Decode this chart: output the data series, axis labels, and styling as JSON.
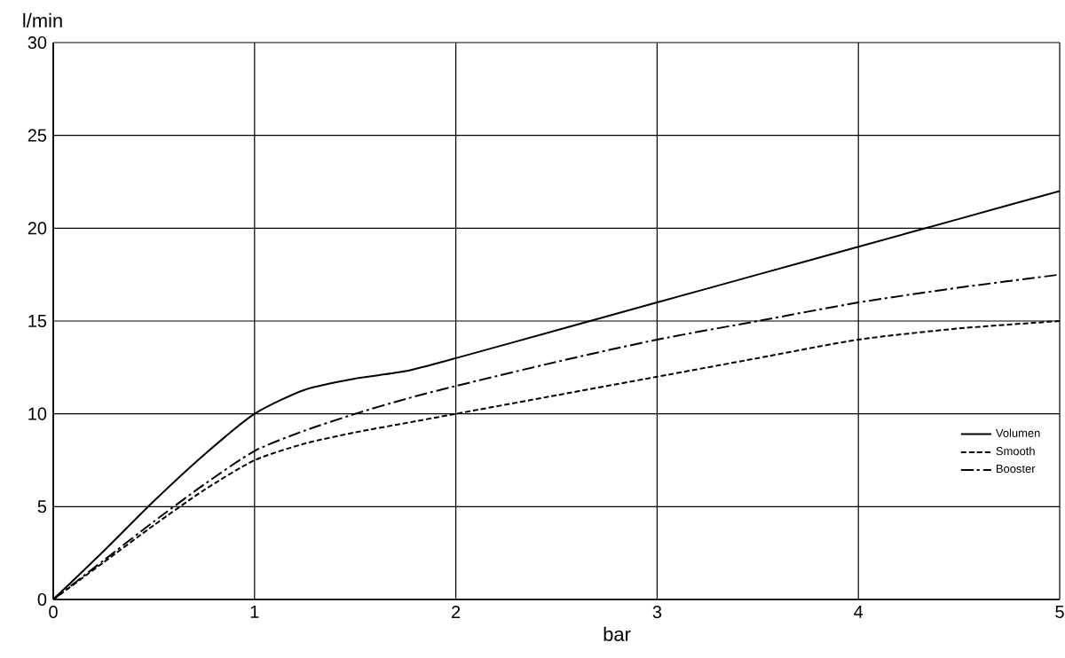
{
  "chart_data": {
    "type": "line",
    "xlabel": "bar",
    "ylabel": "l/min",
    "xlim": [
      0,
      5
    ],
    "ylim": [
      0,
      30
    ],
    "xticks": [
      0,
      1,
      2,
      3,
      4,
      5
    ],
    "yticks": [
      0,
      5,
      10,
      15,
      20,
      25,
      30
    ],
    "grid": true,
    "legend": "right",
    "marker": "none",
    "series": [
      {
        "name": "Volumen",
        "color": "#000000",
        "line_style": "solid",
        "x": [
          0,
          0.25,
          0.5,
          0.75,
          1,
          1.25,
          1.5,
          1.75,
          2,
          2.5,
          3,
          3.5,
          4,
          4.5,
          5
        ],
        "values": [
          0,
          2.6,
          5.3,
          7.8,
          10,
          11.3,
          11.9,
          12.3,
          13,
          14.5,
          16,
          17.5,
          19,
          20.5,
          22
        ]
      },
      {
        "name": "Smooth",
        "color": "#000000",
        "line_style": "dashed",
        "x": [
          0,
          0.25,
          0.5,
          0.75,
          1,
          1.25,
          1.5,
          1.75,
          2,
          2.5,
          3,
          3.5,
          4,
          4.5,
          5
        ],
        "values": [
          0,
          2,
          4,
          5.9,
          7.5,
          8.4,
          9,
          9.5,
          10,
          11,
          12,
          13,
          14,
          14.6,
          15
        ]
      },
      {
        "name": "Booster",
        "color": "#000000",
        "line_style": "dashdot",
        "x": [
          0,
          0.25,
          0.5,
          0.75,
          1,
          1.25,
          1.5,
          1.75,
          2,
          2.5,
          3,
          3.5,
          4,
          4.5,
          5
        ],
        "values": [
          0,
          2.1,
          4.2,
          6.2,
          8,
          9.1,
          10,
          10.8,
          11.5,
          12.8,
          14,
          15,
          16,
          16.8,
          17.5
        ]
      }
    ]
  }
}
